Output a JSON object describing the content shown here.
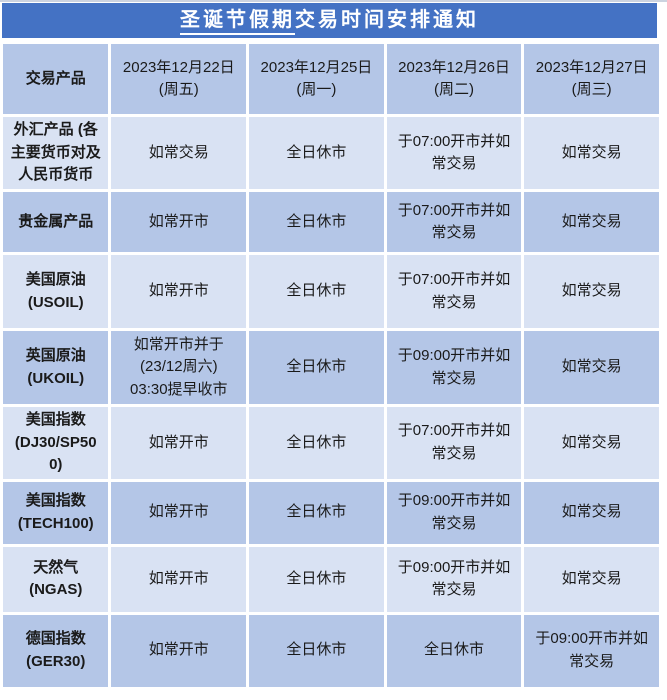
{
  "notice": {
    "title_underlined": "圣诞节假期",
    "title_rest": "交易时间安排通知"
  },
  "colors": {
    "title_bar_bg": "#4472C4",
    "title_text": "#FFFFFF",
    "header_row_bg": "#B4C6E7",
    "row_light_bg": "#D9E2F3",
    "row_dark_bg": "#B4C6E7",
    "gridline": "#FFFFFF",
    "body_text": "#1A1A1A"
  },
  "table": {
    "columns": [
      "交易产品",
      "2023年12月22日\n(周五)",
      "2023年12月25日\n(周一)",
      "2023年12月26日\n(周二)",
      "2023年12月27日\n(周三)"
    ],
    "rows": [
      {
        "product": "外汇产品 (各\n主要货币对及\n人民币货币",
        "cells": [
          "如常交易",
          "全日休市",
          "于07:00开市并如\n常交易",
          "如常交易"
        ]
      },
      {
        "product": "贵金属产品",
        "cells": [
          "如常开市",
          "全日休市",
          "于07:00开市并如\n常交易",
          "如常交易"
        ]
      },
      {
        "product": "美国原油\n(USOIL)",
        "cells": [
          "如常开市",
          "全日休市",
          "于07:00开市并如\n常交易",
          "如常交易"
        ]
      },
      {
        "product": "英国原油\n(UKOIL)",
        "cells": [
          "如常开市并于\n(23/12周六)\n03:30提早收市",
          "全日休市",
          "于09:00开市并如\n常交易",
          "如常交易"
        ]
      },
      {
        "product": "美国指数\n(DJ30/SP50\n0)",
        "cells": [
          "如常开市",
          "全日休市",
          "于07:00开市并如\n常交易",
          "如常交易"
        ]
      },
      {
        "product": "美国指数\n(TECH100)",
        "cells": [
          "如常开市",
          "全日休市",
          "于09:00开市并如\n常交易",
          "如常交易"
        ]
      },
      {
        "product": "天然气\n(NGAS)",
        "cells": [
          "如常开市",
          "全日休市",
          "于09:00开市并如\n常交易",
          "如常交易"
        ]
      },
      {
        "product": "德国指数\n(GER30)",
        "cells": [
          "如常开市",
          "全日休市",
          "全日休市",
          "于09:00开市并如\n常交易"
        ]
      }
    ]
  }
}
